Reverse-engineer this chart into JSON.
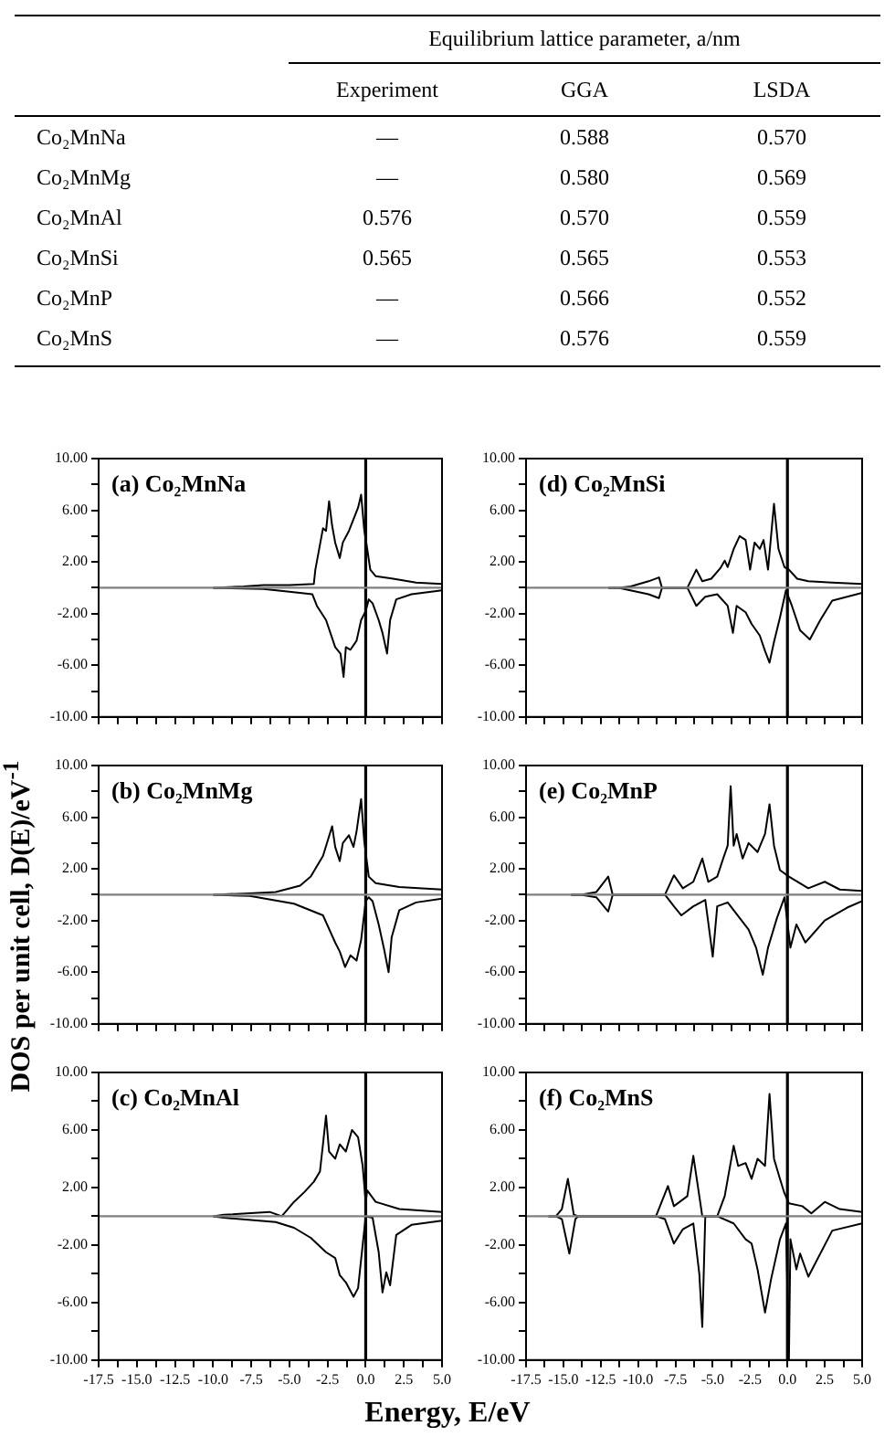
{
  "chart_data": [
    {
      "type": "other",
      "title": "Equilibrium lattice parameter, a/nm",
      "categories": [
        "Co₂MnNa",
        "Co₂MnMg",
        "Co₂MnAl",
        "Co₂MnSi",
        "Co₂MnP",
        "Co₂MnS"
      ],
      "series": [
        {
          "name": "Experiment",
          "values": [
            null,
            null,
            0.576,
            0.565,
            null,
            null
          ],
          "value_labels": [
            "—",
            "—",
            "0.576",
            "0.565",
            "—",
            "—"
          ]
        },
        {
          "name": "GGA",
          "values": [
            0.588,
            0.58,
            0.57,
            0.565,
            0.566,
            0.576
          ],
          "value_labels": [
            "0.588",
            "0.580",
            "0.570",
            "0.565",
            "0.566",
            "0.576"
          ]
        },
        {
          "name": "LSDA",
          "values": [
            0.57,
            0.569,
            0.559,
            0.553,
            0.552,
            0.559
          ],
          "value_labels": [
            "0.570",
            "0.569",
            "0.559",
            "0.553",
            "0.552",
            "0.559"
          ]
        }
      ]
    },
    {
      "type": "line",
      "title": "(a) Co₂MnNa",
      "tick_labels": "y",
      "xlim": [
        -17.5,
        5
      ],
      "ylim": [
        -10,
        10
      ],
      "xticks": [
        -17.5,
        -16.25,
        -15,
        -13.75,
        -12.5,
        -11.25,
        -10,
        -8.75,
        -7.5,
        -6.25,
        -5,
        -3.75,
        -2.5,
        -1.25,
        0,
        1.25,
        2.5,
        3.75,
        5
      ],
      "yticks": [
        {
          "value": -10,
          "label": "-10.00"
        },
        {
          "value": -8,
          "label": null
        },
        {
          "value": -6,
          "label": "-6.00"
        },
        {
          "value": -4,
          "label": null
        },
        {
          "value": -2,
          "label": "-2.00"
        },
        {
          "value": 0,
          "label": null
        },
        {
          "value": 2,
          "label": "2.00"
        },
        {
          "value": 4,
          "label": null
        },
        {
          "value": 6,
          "label": "6.00"
        },
        {
          "value": 8,
          "label": null
        },
        {
          "value": 10,
          "label": "10.00"
        }
      ],
      "ref_lines": [
        {
          "axis": "x",
          "value": 0,
          "color": "#000000"
        },
        {
          "axis": "y",
          "value": 0,
          "color": "#808080"
        }
      ],
      "series": [
        {
          "color": "#000000",
          "x": [
            -10,
            -8,
            -6.7,
            -5,
            -3.4,
            -3.3,
            -2.8,
            -2.6,
            -2.4,
            -2.2,
            -2,
            -1.7,
            -1.5,
            -1.1,
            -0.8,
            -0.5,
            -0.3,
            -0.1,
            0.1,
            0.3,
            0.65,
            1.8,
            3.3,
            5
          ],
          "values": [
            0,
            0.1,
            0.2,
            0.2,
            0.3,
            1.4,
            4.6,
            4.4,
            6.7,
            4.8,
            3.5,
            2.3,
            3.5,
            4.4,
            5.3,
            6.2,
            7.2,
            4.5,
            3,
            1.4,
            0.9,
            0.7,
            0.4,
            0.3
          ]
        },
        {
          "color": "#000000",
          "x": [
            -10,
            -6.7,
            -5,
            -3.5,
            -3.2,
            -2.6,
            -2,
            -1.65,
            -1.45,
            -1.3,
            -1,
            -0.6,
            -0.3,
            0,
            0.2,
            0.45,
            0.85,
            1.1,
            1.4,
            1.6,
            2,
            3,
            5
          ],
          "values": [
            0,
            -0.1,
            -0.3,
            -0.5,
            -1.4,
            -2.5,
            -4.6,
            -5.1,
            -6.9,
            -4.6,
            -4.8,
            -4.1,
            -2.5,
            -1.8,
            -0.9,
            -1.2,
            -2.5,
            -3.5,
            -5.1,
            -2.5,
            -0.9,
            -0.5,
            -0.2
          ]
        }
      ]
    },
    {
      "type": "line",
      "title": "(b) Co₂MnMg",
      "ylabel": "DOS per unit cell, D(E)/eV$^{-1}$",
      "tick_labels": "y",
      "xlim": [
        -17.5,
        5
      ],
      "ylim": [
        -10,
        10
      ],
      "xticks": [
        -17.5,
        -16.25,
        -15,
        -13.75,
        -12.5,
        -11.25,
        -10,
        -8.75,
        -7.5,
        -6.25,
        -5,
        -3.75,
        -2.5,
        -1.25,
        0,
        1.25,
        2.5,
        3.75,
        5
      ],
      "yticks": [
        {
          "value": -10,
          "label": "-10.00"
        },
        {
          "value": -8,
          "label": null
        },
        {
          "value": -6,
          "label": "-6.00"
        },
        {
          "value": -4,
          "label": null
        },
        {
          "value": -2,
          "label": "-2.00"
        },
        {
          "value": 0,
          "label": null
        },
        {
          "value": 2,
          "label": "2.00"
        },
        {
          "value": 4,
          "label": null
        },
        {
          "value": 6,
          "label": "6.00"
        },
        {
          "value": 8,
          "label": null
        },
        {
          "value": 10,
          "label": "10.00"
        }
      ],
      "ref_lines": [
        {
          "axis": "x",
          "value": 0,
          "color": "#000000"
        },
        {
          "axis": "y",
          "value": 0,
          "color": "#808080"
        }
      ],
      "series": [
        {
          "color": "#000000",
          "x": [
            -10,
            -7.6,
            -5.9,
            -4.3,
            -3.6,
            -2.8,
            -2.2,
            -2,
            -1.7,
            -1.5,
            -1.1,
            -0.8,
            -0.6,
            -0.3,
            -0.1,
            0.2,
            0.65,
            2.2,
            5
          ],
          "values": [
            0,
            0.1,
            0.2,
            0.7,
            1.4,
            3,
            5.3,
            3.7,
            2.6,
            4,
            4.6,
            3.7,
            4.9,
            7.4,
            4.2,
            1.4,
            0.9,
            0.6,
            0.4
          ]
        },
        {
          "color": "#000000",
          "x": [
            -10,
            -7.6,
            -4.7,
            -2.8,
            -2,
            -1.7,
            -1.35,
            -1,
            -0.6,
            -0.3,
            0,
            0.2,
            0.45,
            0.85,
            1.2,
            1.5,
            1.7,
            2.2,
            3.3,
            5
          ],
          "values": [
            0,
            -0.1,
            -0.7,
            -1.6,
            -3.7,
            -4.4,
            -5.6,
            -4.7,
            -5.1,
            -3.5,
            -0.5,
            -0.2,
            -0.5,
            -2.3,
            -4.2,
            -6,
            -3.3,
            -1.2,
            -0.6,
            -0.3
          ]
        }
      ]
    },
    {
      "type": "line",
      "title": "(c) Co₂MnAl",
      "xlabel": "Energy, E/eV",
      "xlim": [
        -17.5,
        5
      ],
      "ylim": [
        -10,
        10
      ],
      "xticks": [
        -17.5,
        {
          "value": -16.25,
          "label": null
        },
        {
          "value": -15,
          "label": "-15.0"
        },
        {
          "value": -13.75,
          "label": null
        },
        -12.5,
        {
          "value": -11.25,
          "label": null
        },
        {
          "value": -10,
          "label": "-10.0"
        },
        {
          "value": -8.75,
          "label": null
        },
        -7.5,
        {
          "value": -6.25,
          "label": null
        },
        {
          "value": -5,
          "label": "-5.0"
        },
        {
          "value": -3.75,
          "label": null
        },
        -2.5,
        {
          "value": -1.25,
          "label": null
        },
        {
          "value": 0,
          "label": "0.0"
        },
        {
          "value": 1.25,
          "label": null
        },
        2.5,
        {
          "value": 3.75,
          "label": null
        },
        {
          "value": 5,
          "label": "5.0"
        }
      ],
      "yticks": [
        {
          "value": -10,
          "label": "-10.00"
        },
        {
          "value": -8,
          "label": null
        },
        {
          "value": -6,
          "label": "-6.00"
        },
        {
          "value": -4,
          "label": null
        },
        {
          "value": -2,
          "label": "-2.00"
        },
        {
          "value": 0,
          "label": null
        },
        {
          "value": 2,
          "label": "2.00"
        },
        {
          "value": 4,
          "label": null
        },
        {
          "value": 6,
          "label": "6.00"
        },
        {
          "value": 8,
          "label": null
        },
        {
          "value": 10,
          "label": "10.00"
        }
      ],
      "ref_lines": [
        {
          "axis": "x",
          "value": 0,
          "color": "#000000"
        },
        {
          "axis": "y",
          "value": 0,
          "color": "#808080"
        }
      ],
      "series": [
        {
          "color": "#000000",
          "x": [
            -10,
            -9.3,
            -6.3,
            -5.5,
            -4.7,
            -4,
            -3.4,
            -3,
            -2.8,
            -2.6,
            -2.4,
            -2,
            -1.7,
            -1.3,
            -0.9,
            -0.5,
            -0.2,
            0,
            0.1,
            0.65,
            2.2,
            5
          ],
          "values": [
            0,
            0.1,
            0.3,
            0,
            1,
            1.7,
            2.4,
            3.1,
            5,
            7,
            4.5,
            4,
            5,
            4.5,
            6,
            5.5,
            3.5,
            1,
            1.8,
            1,
            0.5,
            0.3
          ]
        },
        {
          "color": "#000000",
          "x": [
            -10,
            -9.3,
            -5.9,
            -4.7,
            -3.6,
            -2.6,
            -2,
            -1.7,
            -1.3,
            -0.8,
            -0.5,
            -0.2,
            0,
            0.45,
            0.85,
            1.1,
            1.35,
            1.6,
            2,
            3,
            5
          ],
          "values": [
            0,
            -0.1,
            -0.4,
            -0.8,
            -1.5,
            -2.5,
            -2.9,
            -4.1,
            -4.6,
            -5.6,
            -5,
            -2,
            0,
            -0.1,
            -2.5,
            -5.3,
            -3.9,
            -4.8,
            -1.3,
            -0.6,
            -0.3
          ]
        }
      ]
    },
    {
      "type": "line",
      "title": "(d) Co₂MnSi",
      "tick_labels": "y",
      "xlim": [
        -17.5,
        5
      ],
      "ylim": [
        -10,
        10
      ],
      "xticks": [
        -17.5,
        -16.25,
        -15,
        -13.75,
        -12.5,
        -11.25,
        -10,
        -8.75,
        -7.5,
        -6.25,
        -5,
        -3.75,
        -2.5,
        -1.25,
        0,
        1.25,
        2.5,
        3.75,
        5
      ],
      "yticks": [
        {
          "value": -10,
          "label": "-10.00"
        },
        {
          "value": -8,
          "label": null
        },
        {
          "value": -6,
          "label": "-6.00"
        },
        {
          "value": -4,
          "label": null
        },
        {
          "value": -2,
          "label": "-2.00"
        },
        {
          "value": 0,
          "label": null
        },
        {
          "value": 2,
          "label": "2.00"
        },
        {
          "value": 4,
          "label": null
        },
        {
          "value": 6,
          "label": "6.00"
        },
        {
          "value": 8,
          "label": null
        },
        {
          "value": 10,
          "label": "10.00"
        }
      ],
      "ref_lines": [
        {
          "axis": "x",
          "value": 0,
          "color": "#000000"
        },
        {
          "axis": "y",
          "value": 0,
          "color": "#808080"
        }
      ],
      "series": [
        {
          "color": "#000000",
          "x": [
            -12,
            -11.3,
            -10.5,
            -9.3,
            -8.6,
            -8.4,
            -6.7,
            -6.1,
            -5.7,
            -5.1,
            -4.5,
            -4.2,
            -4,
            -3.6,
            -3.2,
            -2.8,
            -2.5,
            -2.2,
            -1.85,
            -1.6,
            -1.3,
            -0.9,
            -0.6,
            -0.2,
            0.1,
            0.65,
            1.4,
            3,
            5
          ],
          "values": [
            0,
            0,
            0.1,
            0.5,
            0.8,
            0,
            0,
            1.4,
            0.5,
            0.7,
            1.5,
            2.1,
            1.6,
            3,
            4,
            3.7,
            1.4,
            3.5,
            3,
            3.7,
            1.4,
            6.5,
            3,
            1.6,
            1.4,
            0.7,
            0.5,
            0.4,
            0.3
          ]
        },
        {
          "color": "#000000",
          "x": [
            -12,
            -11.3,
            -9.3,
            -8.6,
            -8.4,
            -6.7,
            -6.1,
            -5.5,
            -4.7,
            -4,
            -3.65,
            -3.4,
            -2.8,
            -2.4,
            -1.85,
            -1.5,
            -1.2,
            -0.9,
            -0.5,
            -0.1,
            0.3,
            0.85,
            1.5,
            2.2,
            3,
            5
          ],
          "values": [
            0,
            0,
            -0.5,
            -0.8,
            0,
            0,
            -1.4,
            -0.7,
            -0.5,
            -1.4,
            -3.5,
            -1.4,
            -1.9,
            -2.8,
            -3.7,
            -4.9,
            -5.8,
            -4.2,
            -2.3,
            -0.2,
            -1.4,
            -3.3,
            -4,
            -2.5,
            -1,
            -0.4
          ]
        }
      ]
    },
    {
      "type": "line",
      "title": "(e) Co₂MnP",
      "tick_labels": "y",
      "xlim": [
        -17.5,
        5
      ],
      "ylim": [
        -10,
        10
      ],
      "xticks": [
        -17.5,
        -16.25,
        -15,
        -13.75,
        -12.5,
        -11.25,
        -10,
        -8.75,
        -7.5,
        -6.25,
        -5,
        -3.75,
        -2.5,
        -1.25,
        0,
        1.25,
        2.5,
        3.75,
        5
      ],
      "yticks": [
        {
          "value": -10,
          "label": "-10.00"
        },
        {
          "value": -8,
          "label": null
        },
        {
          "value": -6,
          "label": "-6.00"
        },
        {
          "value": -4,
          "label": null
        },
        {
          "value": -2,
          "label": "-2.00"
        },
        {
          "value": 0,
          "label": null
        },
        {
          "value": 2,
          "label": "2.00"
        },
        {
          "value": 4,
          "label": null
        },
        {
          "value": 6,
          "label": "6.00"
        },
        {
          "value": 8,
          "label": null
        },
        {
          "value": 10,
          "label": "10.00"
        }
      ],
      "ref_lines": [
        {
          "axis": "x",
          "value": 0,
          "color": "#000000"
        },
        {
          "axis": "y",
          "value": 0,
          "color": "#808080"
        }
      ],
      "series": [
        {
          "color": "#000000",
          "x": [
            -14.5,
            -13.8,
            -12.8,
            -12,
            -11.7,
            -11.3,
            -8.2,
            -7.6,
            -7,
            -6.3,
            -5.7,
            -5.3,
            -4.7,
            -4.3,
            -4,
            -3.8,
            -3.6,
            -3.4,
            -3,
            -2.6,
            -2,
            -1.5,
            -1.2,
            -0.9,
            -0.5,
            0.1,
            1.4,
            2.5,
            3.5,
            5
          ],
          "values": [
            0,
            0,
            0.2,
            1.4,
            0,
            0,
            0,
            1.5,
            0.5,
            1,
            2.8,
            1,
            1.4,
            2.8,
            3.8,
            8.4,
            3.8,
            4.7,
            2.8,
            4,
            3.3,
            4.7,
            7,
            3.8,
            1.9,
            1.4,
            0.5,
            1,
            0.4,
            0.3
          ]
        },
        {
          "color": "#000000",
          "x": [
            -14.5,
            -13.8,
            -12.8,
            -12,
            -11.7,
            -11.3,
            -8.2,
            -7.6,
            -7.1,
            -6.3,
            -5.5,
            -5,
            -4.7,
            -4,
            -3.2,
            -2.6,
            -2.1,
            -1.65,
            -1.3,
            -0.7,
            -0.2,
            0.2,
            0.6,
            1.2,
            2.5,
            4,
            5
          ],
          "values": [
            0,
            0,
            -0.2,
            -1.3,
            0,
            0,
            0,
            -0.9,
            -1.6,
            -0.9,
            -0.4,
            -4.8,
            -0.9,
            -0.6,
            -1.8,
            -2.7,
            -4.1,
            -6.2,
            -4.1,
            -1.8,
            -0.2,
            -4.1,
            -2.3,
            -3.7,
            -2,
            -1,
            -0.5
          ]
        }
      ]
    },
    {
      "type": "line",
      "title": "(f) Co₂MnS",
      "xlim": [
        -17.5,
        5
      ],
      "ylim": [
        -10,
        10
      ],
      "xticks": [
        -17.5,
        {
          "value": -16.25,
          "label": null
        },
        {
          "value": -15,
          "label": "-15.0"
        },
        {
          "value": -13.75,
          "label": null
        },
        -12.5,
        {
          "value": -11.25,
          "label": null
        },
        {
          "value": -10,
          "label": "-10.0"
        },
        {
          "value": -8.75,
          "label": null
        },
        -7.5,
        {
          "value": -6.25,
          "label": null
        },
        {
          "value": -5,
          "label": "-5.0"
        },
        {
          "value": -3.75,
          "label": null
        },
        -2.5,
        {
          "value": -1.25,
          "label": null
        },
        {
          "value": 0,
          "label": "0.0"
        },
        {
          "value": 1.25,
          "label": null
        },
        2.5,
        {
          "value": 3.75,
          "label": null
        },
        {
          "value": 5,
          "label": "5.0"
        }
      ],
      "yticks": [
        {
          "value": -10,
          "label": "-10.00"
        },
        {
          "value": -8,
          "label": null
        },
        {
          "value": -6,
          "label": "-6.00"
        },
        {
          "value": -4,
          "label": null
        },
        {
          "value": -2,
          "label": "-2.00"
        },
        {
          "value": 0,
          "label": null
        },
        {
          "value": 2,
          "label": "2.00"
        },
        {
          "value": 4,
          "label": null
        },
        {
          "value": 6,
          "label": "6.00"
        },
        {
          "value": 8,
          "label": null
        },
        {
          "value": 10,
          "label": "10.00"
        }
      ],
      "ref_lines": [
        {
          "axis": "x",
          "value": 0,
          "color": "#000000"
        },
        {
          "axis": "y",
          "value": 0,
          "color": "#808080"
        }
      ],
      "series": [
        {
          "color": "#000000",
          "x": [
            -16,
            -15.5,
            -15.1,
            -14.7,
            -14.3,
            -14,
            -8.8,
            -8,
            -7.6,
            -6.7,
            -6.3,
            -5.7,
            -4.7,
            -4.2,
            -3.6,
            -3.3,
            -2.8,
            -2.4,
            -2,
            -1.5,
            -1.2,
            -0.9,
            -0.5,
            -0.2,
            0.1,
            1,
            1.6,
            2.5,
            3.5,
            5
          ],
          "values": [
            0,
            0,
            0.5,
            2.6,
            0.1,
            0,
            0,
            2.1,
            0.7,
            1.4,
            4.2,
            0,
            0,
            1.4,
            4.9,
            3.5,
            3.7,
            2.6,
            4,
            3.5,
            8.5,
            4,
            2.6,
            1.6,
            0.9,
            0.7,
            0.2,
            1,
            0.5,
            0.3
          ]
        },
        {
          "color": "#000000",
          "x": [
            -16,
            -15.5,
            -15.1,
            -14.6,
            -14.2,
            -14,
            -8.8,
            -8.2,
            -7.6,
            -7,
            -6.3,
            -5.9,
            -5.7,
            -5.5,
            -4.7,
            -3.6,
            -2.8,
            -2.4,
            -2,
            -1.65,
            -1.5,
            -1.1,
            -0.5,
            -0.1,
            0.1,
            0.2,
            0.6,
            0.85,
            1.4,
            3,
            5
          ],
          "values": [
            0,
            0,
            -0.2,
            -2.6,
            -0.2,
            0,
            0,
            -0.2,
            -1.9,
            -0.9,
            -0.5,
            -4,
            -7.7,
            0,
            0,
            -0.5,
            -1.6,
            -1.9,
            -3.7,
            -5.8,
            -6.7,
            -4.4,
            -1.6,
            -0.5,
            -10,
            -1.6,
            -3.7,
            -2.6,
            -4.2,
            -1,
            -0.5
          ]
        }
      ]
    }
  ]
}
